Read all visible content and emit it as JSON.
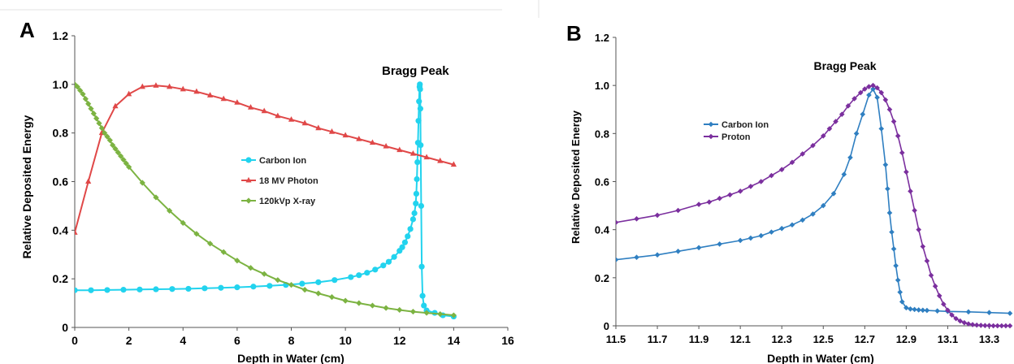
{
  "chart_data": [
    {
      "type": "line",
      "panel_label": "A",
      "annotation": "Bragg Peak",
      "xlabel": "Depth in Water (cm)",
      "ylabel": "Relative Deposited Energy",
      "xlim": [
        0,
        16
      ],
      "ylim": [
        0,
        1.2
      ],
      "xticks": [
        "0",
        "2",
        "4",
        "6",
        "8",
        "10",
        "12",
        "14",
        "16"
      ],
      "yticks": [
        "0",
        "0.2",
        "0.4",
        "0.6",
        "0.8",
        "1.0",
        "1.2"
      ],
      "grid": false,
      "legend_position": "center-right",
      "series": [
        {
          "name": "Carbon Ion",
          "color": "#22d3ee",
          "marker": "circle",
          "x": [
            0,
            0.6,
            1.2,
            1.8,
            2.4,
            3.0,
            3.6,
            4.2,
            4.8,
            5.4,
            6.0,
            6.6,
            7.2,
            7.8,
            8.4,
            9.0,
            9.6,
            10.2,
            10.5,
            10.8,
            11.1,
            11.4,
            11.6,
            11.8,
            12.0,
            12.1,
            12.2,
            12.3,
            12.4,
            12.5,
            12.55,
            12.6,
            12.62,
            12.64,
            12.66,
            12.68,
            12.7,
            12.72,
            12.74,
            12.75,
            12.76,
            12.77,
            12.78,
            12.8,
            12.82,
            12.85,
            12.9,
            13.0,
            13.3,
            13.6,
            14.0
          ],
          "values": [
            0.153,
            0.153,
            0.154,
            0.155,
            0.156,
            0.157,
            0.158,
            0.159,
            0.161,
            0.163,
            0.165,
            0.168,
            0.171,
            0.175,
            0.18,
            0.186,
            0.195,
            0.207,
            0.215,
            0.225,
            0.238,
            0.255,
            0.27,
            0.29,
            0.315,
            0.33,
            0.35,
            0.375,
            0.405,
            0.445,
            0.47,
            0.51,
            0.55,
            0.61,
            0.68,
            0.76,
            0.85,
            0.93,
            0.99,
            1.0,
            0.98,
            0.9,
            0.75,
            0.5,
            0.25,
            0.13,
            0.09,
            0.07,
            0.06,
            0.05,
            0.045
          ]
        },
        {
          "name": "18 MV Photon",
          "color": "#e04848",
          "marker": "triangle",
          "x": [
            0,
            0.5,
            1.0,
            1.5,
            2.0,
            2.5,
            3.0,
            3.5,
            4.0,
            4.5,
            5.0,
            5.5,
            6.0,
            6.5,
            7.0,
            7.5,
            8.0,
            8.5,
            9.0,
            9.5,
            10.0,
            10.5,
            11.0,
            11.5,
            12.0,
            12.5,
            13.0,
            13.5,
            14.0
          ],
          "values": [
            0.39,
            0.6,
            0.8,
            0.91,
            0.96,
            0.99,
            0.995,
            0.99,
            0.98,
            0.97,
            0.955,
            0.94,
            0.925,
            0.905,
            0.89,
            0.87,
            0.855,
            0.84,
            0.82,
            0.805,
            0.79,
            0.775,
            0.76,
            0.745,
            0.73,
            0.715,
            0.7,
            0.685,
            0.67
          ]
        },
        {
          "name": "120kVp X-ray",
          "color": "#7cb342",
          "marker": "diamond",
          "x": [
            0,
            0.1,
            0.2,
            0.3,
            0.4,
            0.5,
            0.6,
            0.7,
            0.8,
            0.9,
            1.0,
            1.1,
            1.2,
            1.3,
            1.4,
            1.5,
            1.6,
            1.7,
            1.8,
            1.9,
            2.0,
            2.5,
            3.0,
            3.5,
            4.0,
            4.5,
            5.0,
            5.5,
            6.0,
            6.5,
            7.0,
            7.5,
            8.0,
            8.5,
            9.0,
            9.5,
            10.0,
            10.5,
            11.0,
            11.5,
            12.0,
            12.5,
            13.0,
            13.5,
            14.0
          ],
          "values": [
            1.0,
            0.99,
            0.975,
            0.96,
            0.94,
            0.92,
            0.9,
            0.88,
            0.86,
            0.84,
            0.82,
            0.8,
            0.785,
            0.77,
            0.75,
            0.735,
            0.72,
            0.705,
            0.69,
            0.675,
            0.66,
            0.595,
            0.535,
            0.48,
            0.43,
            0.385,
            0.345,
            0.31,
            0.275,
            0.245,
            0.22,
            0.195,
            0.175,
            0.155,
            0.14,
            0.125,
            0.11,
            0.1,
            0.09,
            0.08,
            0.072,
            0.065,
            0.06,
            0.055,
            0.05
          ]
        }
      ]
    },
    {
      "type": "line",
      "panel_label": "B",
      "annotation": "Bragg Peak",
      "xlabel": "Depth in Water (cm)",
      "ylabel": "Relative Deposited Energy",
      "xlim": [
        11.5,
        13.4
      ],
      "ylim": [
        0,
        1.2
      ],
      "xticks": [
        "11.5",
        "11.7",
        "11.9",
        "12.1",
        "12.3",
        "12.5",
        "12.7",
        "12.9",
        "13.1",
        "13.3"
      ],
      "yticks": [
        "0",
        "0.2",
        "0.4",
        "0.6",
        "0.8",
        "1.0",
        "1.2"
      ],
      "grid": false,
      "legend_position": "center-left",
      "series": [
        {
          "name": "Carbon Ion",
          "color": "#2f7fc1",
          "marker": "diamond",
          "x": [
            11.5,
            11.6,
            11.7,
            11.8,
            11.9,
            12.0,
            12.1,
            12.15,
            12.2,
            12.25,
            12.3,
            12.35,
            12.4,
            12.45,
            12.5,
            12.55,
            12.6,
            12.63,
            12.66,
            12.69,
            12.72,
            12.74,
            12.76,
            12.78,
            12.8,
            12.81,
            12.82,
            12.83,
            12.84,
            12.85,
            12.86,
            12.87,
            12.88,
            12.9,
            12.92,
            12.94,
            12.96,
            12.98,
            13.0,
            13.05,
            13.1,
            13.2,
            13.3,
            13.4
          ],
          "values": [
            0.275,
            0.285,
            0.295,
            0.31,
            0.325,
            0.34,
            0.355,
            0.365,
            0.375,
            0.39,
            0.405,
            0.42,
            0.44,
            0.465,
            0.5,
            0.55,
            0.63,
            0.7,
            0.8,
            0.88,
            0.96,
            0.985,
            0.95,
            0.82,
            0.67,
            0.57,
            0.47,
            0.39,
            0.32,
            0.25,
            0.19,
            0.14,
            0.1,
            0.075,
            0.07,
            0.068,
            0.066,
            0.065,
            0.064,
            0.062,
            0.06,
            0.058,
            0.055,
            0.052
          ]
        },
        {
          "name": "Proton",
          "color": "#7b2f9e",
          "marker": "diamond",
          "x": [
            11.5,
            11.6,
            11.7,
            11.8,
            11.9,
            11.95,
            12.0,
            12.05,
            12.1,
            12.15,
            12.2,
            12.25,
            12.3,
            12.35,
            12.4,
            12.45,
            12.5,
            12.53,
            12.56,
            12.59,
            12.62,
            12.65,
            12.68,
            12.7,
            12.72,
            12.74,
            12.76,
            12.78,
            12.8,
            12.82,
            12.84,
            12.86,
            12.88,
            12.9,
            12.92,
            12.94,
            12.96,
            12.98,
            13.0,
            13.02,
            13.04,
            13.06,
            13.08,
            13.1,
            13.12,
            13.14,
            13.16,
            13.18,
            13.2,
            13.22,
            13.24,
            13.26,
            13.28,
            13.3,
            13.32,
            13.34,
            13.36,
            13.38,
            13.4
          ],
          "values": [
            0.43,
            0.445,
            0.46,
            0.48,
            0.505,
            0.515,
            0.53,
            0.545,
            0.56,
            0.58,
            0.6,
            0.625,
            0.65,
            0.68,
            0.715,
            0.75,
            0.79,
            0.82,
            0.85,
            0.88,
            0.915,
            0.945,
            0.97,
            0.985,
            0.995,
            1.0,
            0.99,
            0.97,
            0.94,
            0.9,
            0.85,
            0.79,
            0.72,
            0.64,
            0.56,
            0.48,
            0.4,
            0.33,
            0.27,
            0.21,
            0.165,
            0.125,
            0.09,
            0.065,
            0.045,
            0.03,
            0.02,
            0.013,
            0.008,
            0.005,
            0.003,
            0.002,
            0.001,
            0.001,
            0.0,
            0.0,
            0.0,
            0.0,
            0.0
          ]
        }
      ]
    }
  ]
}
